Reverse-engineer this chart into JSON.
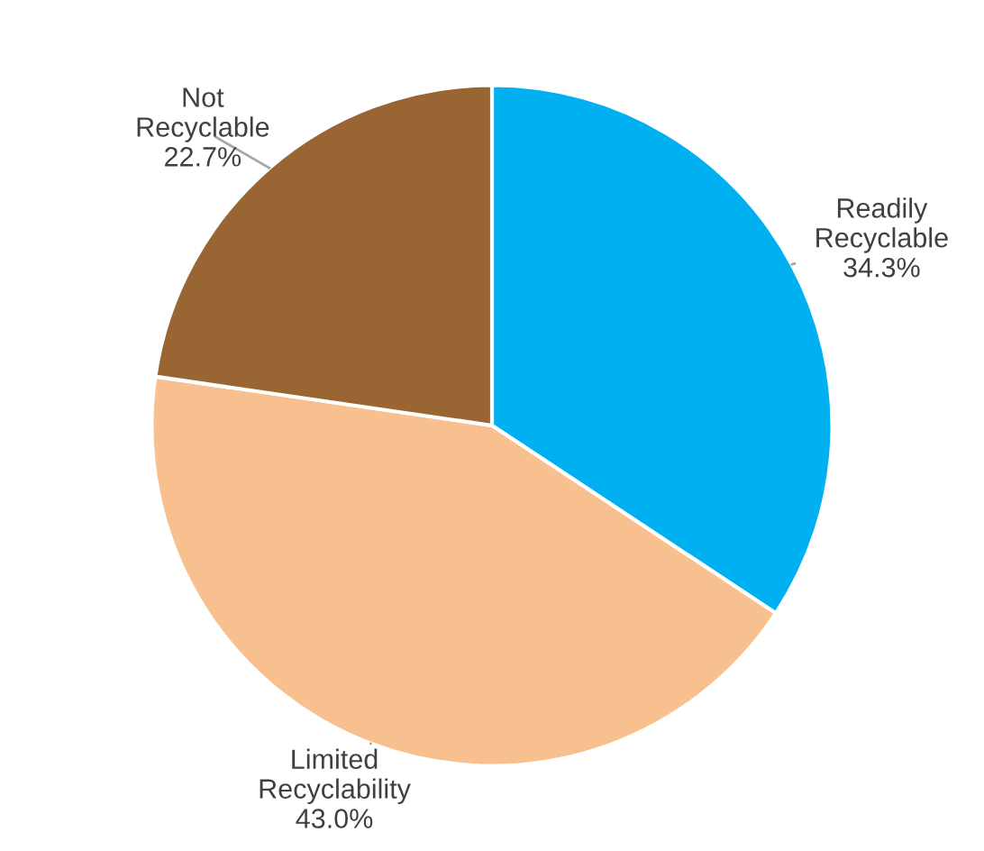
{
  "chart_data": {
    "type": "pie",
    "categories": [
      "Readily Recyclable",
      "Limited Recyclability",
      "Not Recyclable"
    ],
    "values": [
      34.3,
      43.0,
      22.7
    ],
    "value_labels": [
      "34.3%",
      "43.0%",
      "22.7%"
    ],
    "colors": [
      "#00b0f0",
      "#f8c08e",
      "#996633"
    ]
  }
}
